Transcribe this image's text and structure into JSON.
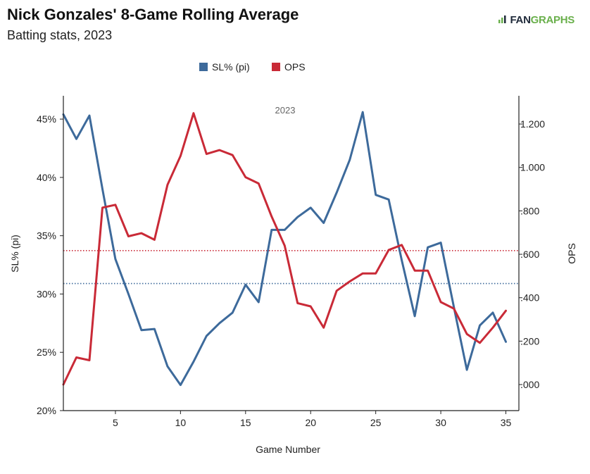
{
  "header": {
    "title": "Nick Gonzales' 8-Game Rolling Average",
    "subtitle": "Batting stats, 2023",
    "logo_prefix": "FAN",
    "logo_suffix": "GRAPHS"
  },
  "colors": {
    "sl": "#3d6a9b",
    "ops": "#c92a37",
    "axis": "#222222",
    "text": "#222222",
    "panel_label": "#666666"
  },
  "chart_data": {
    "type": "line",
    "title": "Nick Gonzales' 8-Game Rolling Average",
    "subtitle": "Batting stats, 2023",
    "panel_label": "2023",
    "xlabel": "Game Number",
    "ylabel_left": "SL% (pi)",
    "ylabel_right": "OPS",
    "xlim": [
      1,
      36
    ],
    "ylim_left": [
      0.2,
      0.47
    ],
    "ylim_right": [
      -0.12,
      1.33
    ],
    "x_ticks": [
      5,
      10,
      15,
      20,
      25,
      30,
      35
    ],
    "y_left_ticks": [
      {
        "value": 0.2,
        "label": "20%"
      },
      {
        "value": 0.25,
        "label": "25%"
      },
      {
        "value": 0.3,
        "label": "30%"
      },
      {
        "value": 0.35,
        "label": "35%"
      },
      {
        "value": 0.4,
        "label": "40%"
      },
      {
        "value": 0.45,
        "label": "45%"
      }
    ],
    "y_right_ticks": [
      {
        "value": 0.0,
        "label": ".000"
      },
      {
        "value": 0.2,
        "label": ".200"
      },
      {
        "value": 0.4,
        "label": ".400"
      },
      {
        "value": 0.6,
        "label": ".600"
      },
      {
        "value": 0.8,
        "label": ".800"
      },
      {
        "value": 1.0,
        "label": "1.000"
      },
      {
        "value": 1.2,
        "label": "1.200"
      }
    ],
    "legend_position": "top-center",
    "grid": false,
    "x": [
      1,
      2,
      3,
      4,
      5,
      6,
      7,
      8,
      9,
      10,
      11,
      12,
      13,
      14,
      15,
      16,
      17,
      18,
      19,
      20,
      21,
      22,
      23,
      24,
      25,
      26,
      27,
      28,
      29,
      30,
      31,
      32,
      33,
      34,
      35
    ],
    "series": [
      {
        "name": "SL% (pi)",
        "axis": "left",
        "values": [
          0.454,
          0.433,
          0.453,
          0.39,
          0.33,
          0.3,
          0.269,
          0.27,
          0.238,
          0.222,
          0.242,
          0.264,
          0.275,
          0.284,
          0.308,
          0.293,
          0.355,
          0.355,
          0.366,
          0.374,
          0.361,
          0.387,
          0.415,
          0.456,
          0.385,
          0.381,
          0.329,
          0.281,
          0.34,
          0.344,
          0.289,
          0.235,
          0.273,
          0.284,
          0.259
        ],
        "mean": 0.309
      },
      {
        "name": "OPS",
        "axis": "right",
        "values": [
          0.0,
          0.125,
          0.112,
          0.815,
          0.828,
          0.683,
          0.697,
          0.667,
          0.92,
          1.053,
          1.25,
          1.062,
          1.08,
          1.057,
          0.955,
          0.926,
          0.774,
          0.64,
          0.375,
          0.36,
          0.262,
          0.432,
          0.475,
          0.512,
          0.512,
          0.62,
          0.643,
          0.525,
          0.525,
          0.38,
          0.35,
          0.233,
          0.192,
          0.262,
          0.34
        ],
        "mean": 0.617
      }
    ]
  }
}
